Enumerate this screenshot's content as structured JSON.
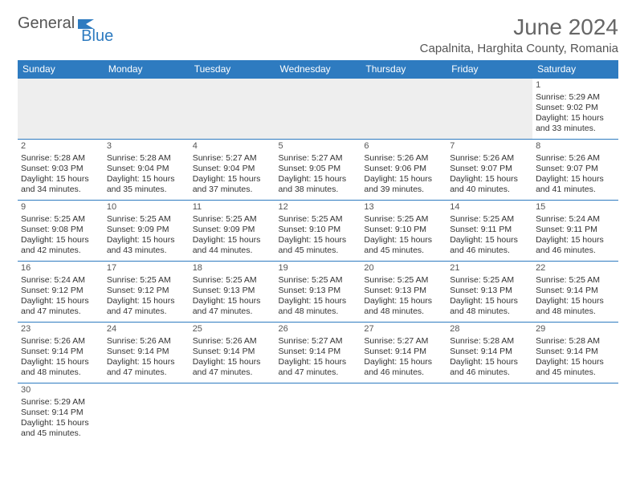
{
  "logo": {
    "word1": "General",
    "word2": "Blue",
    "shape_color": "#2e7bc0",
    "text1_color": "#555555"
  },
  "header": {
    "title": "June 2024",
    "location": "Capalnita, Harghita County, Romania",
    "title_color": "#666666",
    "title_fontsize": 28
  },
  "calendar": {
    "header_bg": "#2e7bc0",
    "header_text_color": "#ffffff",
    "cell_border_color": "#2e7bc0",
    "blank_bg": "#eeeeee",
    "days_of_week": [
      "Sunday",
      "Monday",
      "Tuesday",
      "Wednesday",
      "Thursday",
      "Friday",
      "Saturday"
    ],
    "weeks": [
      [
        null,
        null,
        null,
        null,
        null,
        null,
        {
          "n": "1",
          "sr": "Sunrise: 5:29 AM",
          "ss": "Sunset: 9:02 PM",
          "d1": "Daylight: 15 hours",
          "d2": "and 33 minutes."
        }
      ],
      [
        {
          "n": "2",
          "sr": "Sunrise: 5:28 AM",
          "ss": "Sunset: 9:03 PM",
          "d1": "Daylight: 15 hours",
          "d2": "and 34 minutes."
        },
        {
          "n": "3",
          "sr": "Sunrise: 5:28 AM",
          "ss": "Sunset: 9:04 PM",
          "d1": "Daylight: 15 hours",
          "d2": "and 35 minutes."
        },
        {
          "n": "4",
          "sr": "Sunrise: 5:27 AM",
          "ss": "Sunset: 9:04 PM",
          "d1": "Daylight: 15 hours",
          "d2": "and 37 minutes."
        },
        {
          "n": "5",
          "sr": "Sunrise: 5:27 AM",
          "ss": "Sunset: 9:05 PM",
          "d1": "Daylight: 15 hours",
          "d2": "and 38 minutes."
        },
        {
          "n": "6",
          "sr": "Sunrise: 5:26 AM",
          "ss": "Sunset: 9:06 PM",
          "d1": "Daylight: 15 hours",
          "d2": "and 39 minutes."
        },
        {
          "n": "7",
          "sr": "Sunrise: 5:26 AM",
          "ss": "Sunset: 9:07 PM",
          "d1": "Daylight: 15 hours",
          "d2": "and 40 minutes."
        },
        {
          "n": "8",
          "sr": "Sunrise: 5:26 AM",
          "ss": "Sunset: 9:07 PM",
          "d1": "Daylight: 15 hours",
          "d2": "and 41 minutes."
        }
      ],
      [
        {
          "n": "9",
          "sr": "Sunrise: 5:25 AM",
          "ss": "Sunset: 9:08 PM",
          "d1": "Daylight: 15 hours",
          "d2": "and 42 minutes."
        },
        {
          "n": "10",
          "sr": "Sunrise: 5:25 AM",
          "ss": "Sunset: 9:09 PM",
          "d1": "Daylight: 15 hours",
          "d2": "and 43 minutes."
        },
        {
          "n": "11",
          "sr": "Sunrise: 5:25 AM",
          "ss": "Sunset: 9:09 PM",
          "d1": "Daylight: 15 hours",
          "d2": "and 44 minutes."
        },
        {
          "n": "12",
          "sr": "Sunrise: 5:25 AM",
          "ss": "Sunset: 9:10 PM",
          "d1": "Daylight: 15 hours",
          "d2": "and 45 minutes."
        },
        {
          "n": "13",
          "sr": "Sunrise: 5:25 AM",
          "ss": "Sunset: 9:10 PM",
          "d1": "Daylight: 15 hours",
          "d2": "and 45 minutes."
        },
        {
          "n": "14",
          "sr": "Sunrise: 5:25 AM",
          "ss": "Sunset: 9:11 PM",
          "d1": "Daylight: 15 hours",
          "d2": "and 46 minutes."
        },
        {
          "n": "15",
          "sr": "Sunrise: 5:24 AM",
          "ss": "Sunset: 9:11 PM",
          "d1": "Daylight: 15 hours",
          "d2": "and 46 minutes."
        }
      ],
      [
        {
          "n": "16",
          "sr": "Sunrise: 5:24 AM",
          "ss": "Sunset: 9:12 PM",
          "d1": "Daylight: 15 hours",
          "d2": "and 47 minutes."
        },
        {
          "n": "17",
          "sr": "Sunrise: 5:25 AM",
          "ss": "Sunset: 9:12 PM",
          "d1": "Daylight: 15 hours",
          "d2": "and 47 minutes."
        },
        {
          "n": "18",
          "sr": "Sunrise: 5:25 AM",
          "ss": "Sunset: 9:13 PM",
          "d1": "Daylight: 15 hours",
          "d2": "and 47 minutes."
        },
        {
          "n": "19",
          "sr": "Sunrise: 5:25 AM",
          "ss": "Sunset: 9:13 PM",
          "d1": "Daylight: 15 hours",
          "d2": "and 48 minutes."
        },
        {
          "n": "20",
          "sr": "Sunrise: 5:25 AM",
          "ss": "Sunset: 9:13 PM",
          "d1": "Daylight: 15 hours",
          "d2": "and 48 minutes."
        },
        {
          "n": "21",
          "sr": "Sunrise: 5:25 AM",
          "ss": "Sunset: 9:13 PM",
          "d1": "Daylight: 15 hours",
          "d2": "and 48 minutes."
        },
        {
          "n": "22",
          "sr": "Sunrise: 5:25 AM",
          "ss": "Sunset: 9:14 PM",
          "d1": "Daylight: 15 hours",
          "d2": "and 48 minutes."
        }
      ],
      [
        {
          "n": "23",
          "sr": "Sunrise: 5:26 AM",
          "ss": "Sunset: 9:14 PM",
          "d1": "Daylight: 15 hours",
          "d2": "and 48 minutes."
        },
        {
          "n": "24",
          "sr": "Sunrise: 5:26 AM",
          "ss": "Sunset: 9:14 PM",
          "d1": "Daylight: 15 hours",
          "d2": "and 47 minutes."
        },
        {
          "n": "25",
          "sr": "Sunrise: 5:26 AM",
          "ss": "Sunset: 9:14 PM",
          "d1": "Daylight: 15 hours",
          "d2": "and 47 minutes."
        },
        {
          "n": "26",
          "sr": "Sunrise: 5:27 AM",
          "ss": "Sunset: 9:14 PM",
          "d1": "Daylight: 15 hours",
          "d2": "and 47 minutes."
        },
        {
          "n": "27",
          "sr": "Sunrise: 5:27 AM",
          "ss": "Sunset: 9:14 PM",
          "d1": "Daylight: 15 hours",
          "d2": "and 46 minutes."
        },
        {
          "n": "28",
          "sr": "Sunrise: 5:28 AM",
          "ss": "Sunset: 9:14 PM",
          "d1": "Daylight: 15 hours",
          "d2": "and 46 minutes."
        },
        {
          "n": "29",
          "sr": "Sunrise: 5:28 AM",
          "ss": "Sunset: 9:14 PM",
          "d1": "Daylight: 15 hours",
          "d2": "and 45 minutes."
        }
      ],
      [
        {
          "n": "30",
          "sr": "Sunrise: 5:29 AM",
          "ss": "Sunset: 9:14 PM",
          "d1": "Daylight: 15 hours",
          "d2": "and 45 minutes."
        },
        null,
        null,
        null,
        null,
        null,
        null
      ]
    ]
  }
}
